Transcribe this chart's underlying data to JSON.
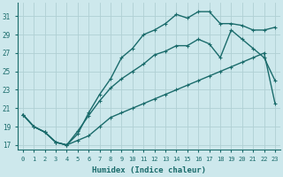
{
  "xlabel": "Humidex (Indice chaleur)",
  "background_color": "#cde8ec",
  "grid_color": "#b0d0d4",
  "line_color": "#1a6b6b",
  "xlim": [
    -0.5,
    23.5
  ],
  "ylim": [
    16.5,
    32.5
  ],
  "xticks": [
    0,
    1,
    2,
    3,
    4,
    5,
    6,
    7,
    8,
    9,
    10,
    11,
    12,
    13,
    14,
    15,
    16,
    17,
    18,
    19,
    20,
    21,
    22,
    23
  ],
  "yticks": [
    17,
    19,
    21,
    23,
    25,
    27,
    29,
    31
  ],
  "curve1_x": [
    0,
    1,
    2,
    3,
    4,
    5,
    6,
    7,
    8,
    9,
    10,
    11,
    12,
    13,
    14,
    15,
    16,
    17,
    18,
    19,
    20,
    21,
    22,
    23
  ],
  "curve1_y": [
    20.3,
    19.0,
    18.4,
    17.3,
    17.0,
    17.5,
    18.0,
    19.0,
    20.0,
    20.5,
    21.0,
    21.5,
    22.0,
    22.5,
    23.0,
    23.5,
    24.0,
    24.5,
    25.0,
    25.5,
    26.0,
    26.5,
    27.0,
    21.5
  ],
  "curve2_x": [
    0,
    1,
    2,
    3,
    4,
    5,
    6,
    7,
    8,
    9,
    10,
    11,
    12,
    13,
    14,
    15,
    16,
    17,
    18,
    19,
    20,
    21,
    22,
    23
  ],
  "curve2_y": [
    20.3,
    19.0,
    18.4,
    17.3,
    17.0,
    18.5,
    20.2,
    21.8,
    23.2,
    24.2,
    25.0,
    25.8,
    26.8,
    27.2,
    27.8,
    27.8,
    28.5,
    28.0,
    26.5,
    29.5,
    28.5,
    27.5,
    26.5,
    24.0
  ],
  "curve3_x": [
    0,
    1,
    2,
    3,
    4,
    5,
    6,
    7,
    8,
    9,
    10,
    11,
    12,
    13,
    14,
    15,
    16,
    17,
    18,
    19,
    20,
    21,
    22,
    23
  ],
  "curve3_y": [
    20.3,
    19.0,
    18.4,
    17.3,
    17.0,
    18.2,
    20.5,
    22.5,
    24.2,
    26.5,
    27.5,
    29.0,
    29.5,
    30.2,
    31.2,
    30.8,
    31.5,
    31.5,
    30.2,
    30.2,
    30.0,
    29.5,
    29.5,
    29.8
  ]
}
